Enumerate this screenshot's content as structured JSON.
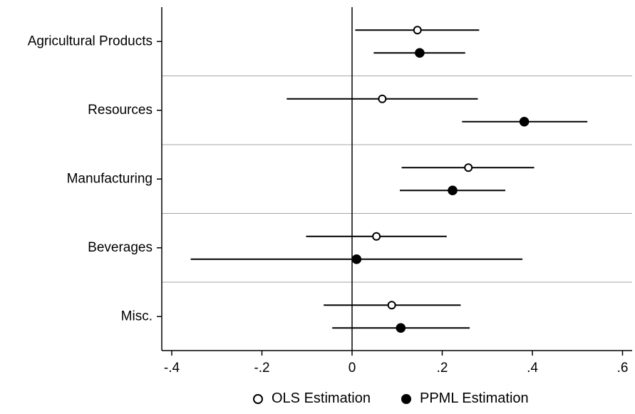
{
  "colors": {
    "ink": "#000000",
    "separator": "#a6a6a6",
    "background": "#ffffff"
  },
  "chart_data": {
    "type": "scatter",
    "subtype": "coefficient-plot",
    "title": "",
    "xlabel": "",
    "ylabel": "",
    "xlim": [
      -0.42,
      0.62
    ],
    "x_ticks": [
      -0.4,
      -0.2,
      0,
      0.2,
      0.4,
      0.6
    ],
    "x_tick_labels": [
      "-.4",
      "-.2",
      "0",
      ".2",
      ".4",
      ".6"
    ],
    "categories": [
      "Agricultural Products",
      "Resources",
      "Manufacturing",
      "Beverages",
      "Misc."
    ],
    "reference_line": 0,
    "grid": false,
    "category_separators": true,
    "legend_position": "bottom",
    "series": [
      {
        "name": "OLS Estimation",
        "marker": "hollow-circle",
        "points": [
          0.145,
          0.067,
          0.258,
          0.054,
          0.088
        ],
        "ci_low": [
          0.007,
          -0.145,
          0.11,
          -0.102,
          -0.063
        ],
        "ci_high": [
          0.282,
          0.279,
          0.404,
          0.21,
          0.241
        ]
      },
      {
        "name": "PPML Estimation",
        "marker": "filled-circle",
        "points": [
          0.15,
          0.382,
          0.223,
          0.01,
          0.108
        ],
        "ci_low": [
          0.048,
          0.244,
          0.106,
          -0.358,
          -0.044
        ],
        "ci_high": [
          0.251,
          0.522,
          0.34,
          0.378,
          0.261
        ]
      }
    ]
  }
}
